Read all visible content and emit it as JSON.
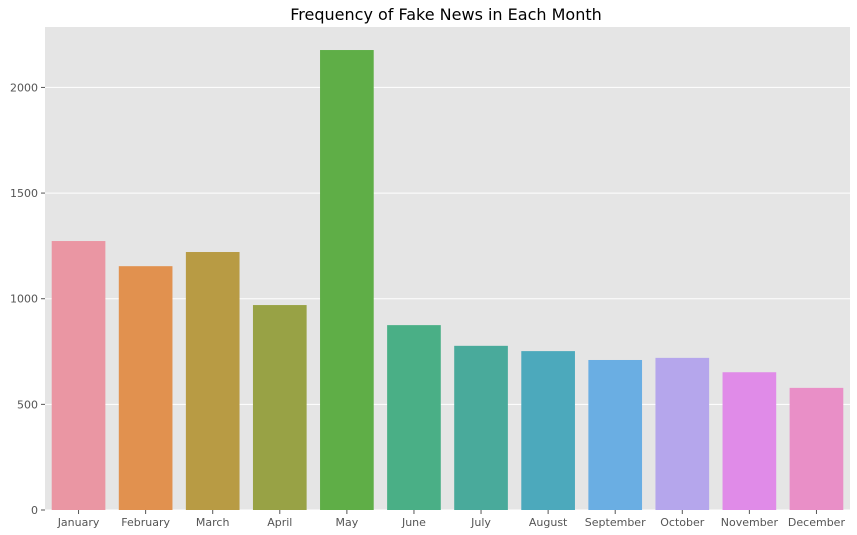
{
  "chart_data": {
    "type": "bar",
    "title": "Frequency of Fake News in Each Month",
    "xlabel": "",
    "ylabel": "",
    "categories": [
      "January",
      "February",
      "March",
      "April",
      "May",
      "June",
      "July",
      "August",
      "September",
      "October",
      "November",
      "December"
    ],
    "values": [
      1273,
      1154,
      1221,
      970,
      2177,
      875,
      777,
      752,
      710,
      720,
      652,
      578
    ],
    "ylim": [
      0,
      2286
    ],
    "yticks": [
      0,
      500,
      1000,
      1500,
      2000
    ],
    "grid": true,
    "colors": [
      "#ea96a3",
      "#e1914f",
      "#b89b44",
      "#98a245",
      "#5fae47",
      "#4aaf86",
      "#49aa9b",
      "#4ca9bc",
      "#6aaee3",
      "#b5a6ec",
      "#e08be8",
      "#e98fc7"
    ],
    "background": "#e5e5e5",
    "grid_color": "#ffffff"
  }
}
